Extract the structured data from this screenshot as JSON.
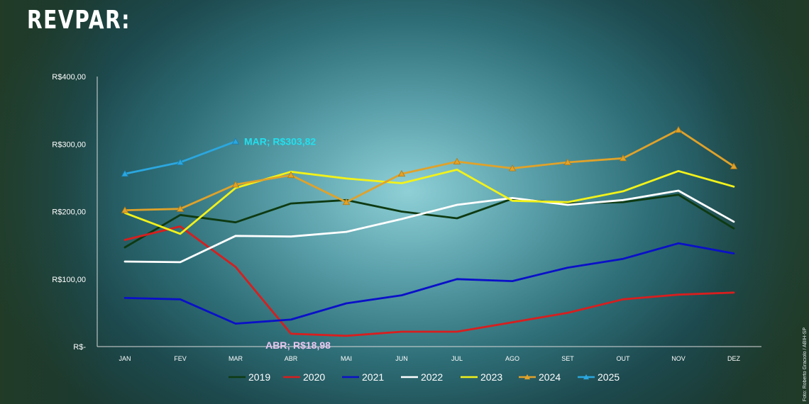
{
  "title": "REVPAR:",
  "credit": "Foto: Roberto Graciolo / ABIH-SP",
  "chart_data": {
    "type": "line",
    "title": "REVPAR:",
    "xlabel": "",
    "ylabel": "",
    "ylim": [
      0,
      400
    ],
    "y_ticks": [
      {
        "value": 0,
        "label": "R$-"
      },
      {
        "value": 100,
        "label": "R$100,00"
      },
      {
        "value": 200,
        "label": "R$200,00"
      },
      {
        "value": 300,
        "label": "R$300,00"
      },
      {
        "value": 400,
        "label": "R$400,00"
      }
    ],
    "categories": [
      "JAN",
      "FEV",
      "MAR",
      "ABR",
      "MAI",
      "JUN",
      "JUL",
      "AGO",
      "SET",
      "OUT",
      "NOV",
      "DEZ"
    ],
    "grid": false,
    "legend_position": "bottom",
    "series": [
      {
        "name": "2019",
        "color": "#0e3a12",
        "marker": "none",
        "values": [
          147,
          195,
          184,
          212,
          217,
          200,
          190,
          219,
          212,
          214,
          225,
          175
        ]
      },
      {
        "name": "2020",
        "color": "#d81e1e",
        "marker": "none",
        "values": [
          158,
          178,
          118,
          18.98,
          16,
          22,
          22,
          36,
          50,
          70,
          77,
          80
        ]
      },
      {
        "name": "2021",
        "color": "#0a10c8",
        "marker": "none",
        "values": [
          72,
          70,
          34,
          40,
          64,
          76,
          100,
          97,
          117,
          130,
          153,
          138
        ]
      },
      {
        "name": "2022",
        "color": "#ffffff",
        "marker": "none",
        "values": [
          126,
          125,
          164,
          163,
          170,
          189,
          210,
          220,
          210,
          217,
          231,
          185
        ]
      },
      {
        "name": "2023",
        "color": "#f2f21a",
        "marker": "none",
        "values": [
          198,
          167,
          235,
          259,
          249,
          242,
          262,
          216,
          214,
          230,
          260,
          237
        ]
      },
      {
        "name": "2024",
        "color": "#e0a22a",
        "marker": "triangle",
        "values": [
          202,
          204,
          240,
          254,
          214,
          256,
          274,
          264,
          273,
          279,
          321,
          267
        ]
      },
      {
        "name": "2025",
        "color": "#2ba7df",
        "marker": "triangle",
        "values": [
          256,
          273,
          303.82,
          null,
          null,
          null,
          null,
          null,
          null,
          null,
          null,
          null
        ]
      }
    ],
    "annotations": [
      {
        "text": "MAR;  R$303,82",
        "series": "2025",
        "category": "MAR",
        "value": 303.82,
        "color": "#22dfee"
      },
      {
        "text": "ABR;  R$18,98",
        "series": "2020",
        "category": "ABR",
        "value": 18.98,
        "color": "#e8c6f0"
      }
    ]
  }
}
